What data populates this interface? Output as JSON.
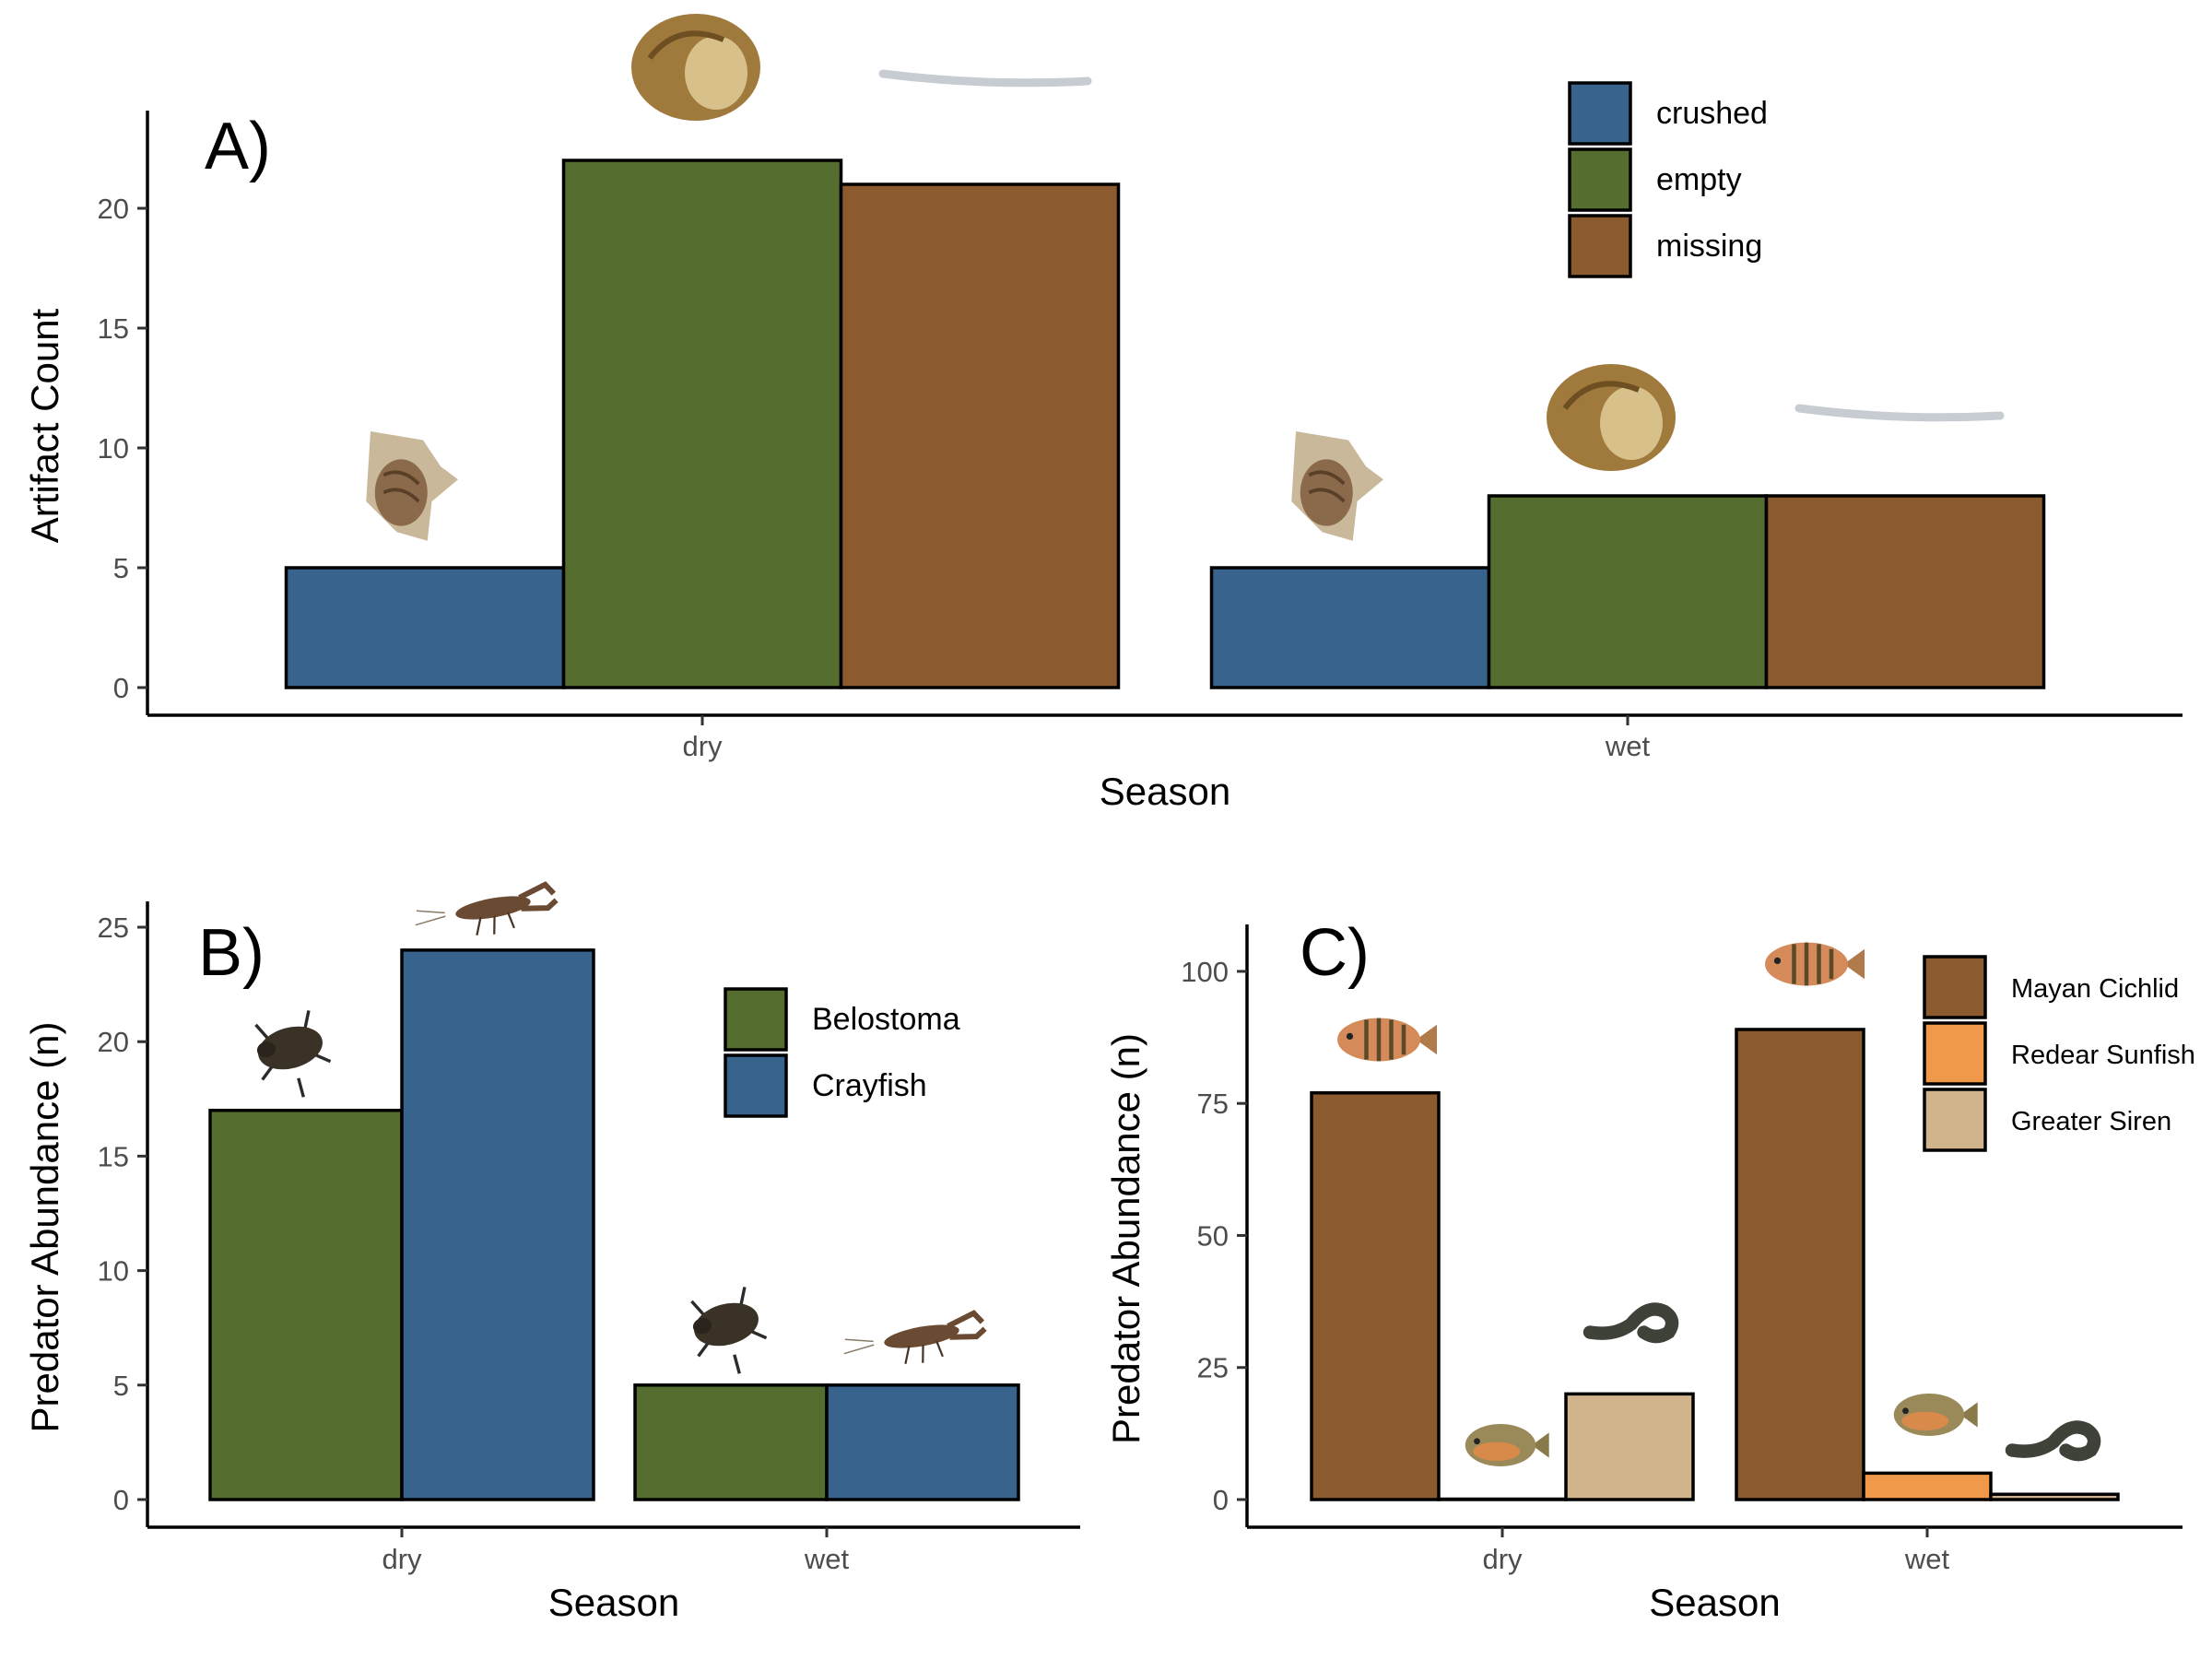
{
  "colors": {
    "blue": "#37638c",
    "green": "#556e30",
    "brown": "#8b5a2e",
    "orange": "#f0994a",
    "tan": "#d2b48c"
  },
  "chart_data": [
    {
      "panel": "A)",
      "type": "bar",
      "categories": [
        "dry",
        "wet"
      ],
      "series": [
        {
          "name": "crushed",
          "values": [
            5,
            5
          ]
        },
        {
          "name": "empty",
          "values": [
            22,
            8
          ]
        },
        {
          "name": "missing",
          "values": [
            21,
            8
          ]
        }
      ],
      "xlabel": "Season",
      "ylabel": "Artifact Count",
      "ylim": [
        0,
        23
      ],
      "yticks": [
        0,
        5,
        10,
        15,
        20
      ],
      "legend_position": "top-right",
      "grid": false
    },
    {
      "panel": "B)",
      "type": "bar",
      "categories": [
        "dry",
        "wet"
      ],
      "series": [
        {
          "name": "Belostoma",
          "values": [
            17,
            5
          ]
        },
        {
          "name": "Crayfish",
          "values": [
            24,
            5
          ]
        }
      ],
      "xlabel": "Season",
      "ylabel": "Predator Abundance (n)",
      "ylim": [
        0,
        25
      ],
      "yticks": [
        0,
        5,
        10,
        15,
        20,
        25
      ],
      "legend_position": "top-right",
      "grid": false
    },
    {
      "panel": "C)",
      "type": "bar",
      "categories": [
        "dry",
        "wet"
      ],
      "series": [
        {
          "name": "Mayan Cichlid",
          "values": [
            77,
            89
          ]
        },
        {
          "name": "Redear Sunfish",
          "values": [
            0,
            5
          ]
        },
        {
          "name": "Greater Siren",
          "values": [
            20,
            1
          ]
        }
      ],
      "xlabel": "Season",
      "ylabel": "Predator Abundance (n)",
      "ylim": [
        0,
        104
      ],
      "yticks": [
        0,
        25,
        50,
        75,
        100
      ],
      "legend_position": "top-right",
      "grid": false
    }
  ]
}
